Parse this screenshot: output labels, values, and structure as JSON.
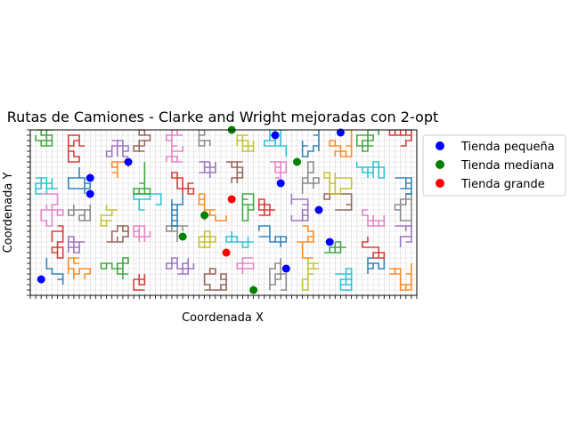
{
  "chart_data": {
    "type": "scatter",
    "title": "Rutas de Camiones - Clarke and Wright mejoradas con 2-opt",
    "xlabel": "Coordenada X",
    "ylabel": "Coordenada Y",
    "xlim": [
      -1,
      70
    ],
    "ylim": [
      -1,
      30
    ],
    "grid": true,
    "legend_position": "upper right, outside plot",
    "legend": [
      {
        "label": "Tienda pequeña",
        "color": "#0000ff"
      },
      {
        "label": "Tienda mediana",
        "color": "#008000"
      },
      {
        "label": "Tienda grande",
        "color": "#ff0000"
      }
    ],
    "series": [
      {
        "name": "Tienda pequeña",
        "color": "#0000ff",
        "points": [
          {
            "x": 1,
            "y": 2
          },
          {
            "x": 10,
            "y": 21
          },
          {
            "x": 10,
            "y": 18
          },
          {
            "x": 17,
            "y": 24
          },
          {
            "x": 44,
            "y": 29
          },
          {
            "x": 45,
            "y": 20
          },
          {
            "x": 52,
            "y": 15
          },
          {
            "x": 46,
            "y": 4
          },
          {
            "x": 54,
            "y": 9
          },
          {
            "x": 56,
            "y": 29.5
          }
        ]
      },
      {
        "name": "Tienda mediana",
        "color": "#008000",
        "points": [
          {
            "x": 36,
            "y": 30
          },
          {
            "x": 48,
            "y": 24
          },
          {
            "x": 31,
            "y": 14
          },
          {
            "x": 27,
            "y": 10
          },
          {
            "x": 40,
            "y": 0
          }
        ]
      },
      {
        "name": "Tienda grande",
        "color": "#ff0000",
        "points": [
          {
            "x": 36,
            "y": 17
          },
          {
            "x": 35,
            "y": 7
          }
        ]
      }
    ]
  }
}
